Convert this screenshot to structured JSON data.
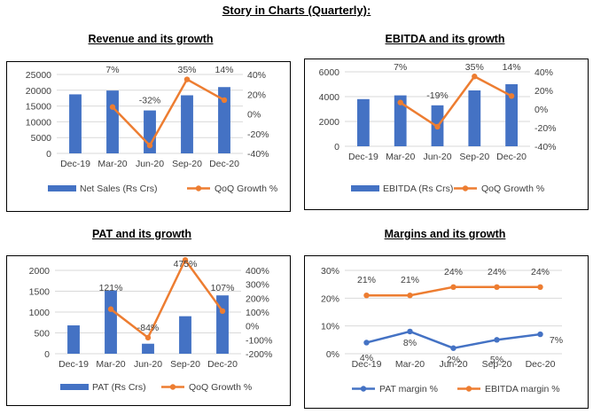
{
  "page_title": "Story in Charts (Quarterly):",
  "colors": {
    "bar": "#4472C4",
    "line": "#ED7D31",
    "pat_line": "#4472C4",
    "ebitda_line": "#ED7D31",
    "grid": "#D9D9D9",
    "axis_text": "#404040"
  },
  "chart_data": [
    {
      "id": "revenue",
      "type": "bar",
      "title": "Revenue and its growth ",
      "categories": [
        "Dec-19",
        "Mar-20",
        "Jun-20",
        "Sep-20",
        "Dec-20"
      ],
      "series": [
        {
          "name": "Net Sales (Rs Crs)",
          "type": "bar",
          "axis": "left",
          "values": [
            18700,
            19900,
            13600,
            18400,
            21000
          ]
        },
        {
          "name": "QoQ Growth %",
          "type": "line",
          "axis": "right",
          "values": [
            null,
            7,
            -32,
            35,
            14
          ],
          "labels": [
            "",
            "7%",
            "-32%",
            "35%",
            "14%"
          ]
        }
      ],
      "y_left": {
        "min": 0,
        "max": 25000,
        "ticks": [
          "0",
          "5000",
          "10000",
          "15000",
          "20000",
          "25000"
        ]
      },
      "y_right": {
        "min": -40,
        "max": 40,
        "ticks": [
          "-40%",
          "-20%",
          "0%",
          "20%",
          "40%"
        ]
      },
      "legend": "bottom"
    },
    {
      "id": "ebitda",
      "type": "bar",
      "title": "EBITDA and its growth",
      "categories": [
        "Dec-19",
        "Mar-20",
        "Jun-20",
        "Sep-20",
        "Dec-20"
      ],
      "series": [
        {
          "name": "EBITDA (Rs Crs)",
          "type": "bar",
          "axis": "left",
          "values": [
            3800,
            4100,
            3300,
            4500,
            5000
          ]
        },
        {
          "name": "QoQ Growth %",
          "type": "line",
          "axis": "right",
          "values": [
            null,
            7,
            -19,
            35,
            14
          ],
          "labels": [
            "",
            "7%",
            "-19%",
            "35%",
            "14%"
          ]
        }
      ],
      "y_left": {
        "min": 0,
        "max": 6000,
        "ticks": [
          "0",
          "2000",
          "4000",
          "6000"
        ]
      },
      "y_right": {
        "min": -40,
        "max": 40,
        "ticks": [
          "-40%",
          "-20%",
          "0%",
          "20%",
          "40%"
        ]
      },
      "legend": "bottom"
    },
    {
      "id": "pat",
      "type": "bar",
      "title": "PAT and its growth",
      "categories": [
        "Dec-19",
        "Mar-20",
        "Jun-20",
        "Sep-20",
        "Dec-20"
      ],
      "series": [
        {
          "name": "PAT (Rs Crs)",
          "type": "bar",
          "axis": "left",
          "values": [
            680,
            1520,
            240,
            900,
            1400
          ]
        },
        {
          "name": "QoQ Growth %",
          "type": "line",
          "axis": "right",
          "values": [
            null,
            121,
            -84,
            475,
            107
          ],
          "labels": [
            "",
            "121%",
            "-84%",
            "475%",
            "107%"
          ]
        }
      ],
      "y_left": {
        "min": 0,
        "max": 2000,
        "ticks": [
          "0",
          "500",
          "1000",
          "1500",
          "2000"
        ]
      },
      "y_right": {
        "min": -200,
        "max": 400,
        "ticks": [
          "-200%",
          "-100%",
          "0%",
          "100%",
          "200%",
          "300%",
          "400%"
        ]
      },
      "legend": "bottom"
    },
    {
      "id": "margins",
      "type": "line",
      "title": "Margins and its growth",
      "categories": [
        "Dec-19",
        "Mar-20",
        "Jun-20",
        "Sep-20",
        "Dec-20"
      ],
      "series": [
        {
          "name": "PAT margin %",
          "type": "line",
          "axis": "left",
          "values": [
            4,
            8,
            2,
            5,
            7
          ],
          "labels": [
            "4%",
            "8%",
            "2%",
            "5%",
            "7%"
          ]
        },
        {
          "name": "EBITDA margin %",
          "type": "line",
          "axis": "left",
          "values": [
            21,
            21,
            24,
            24,
            24
          ],
          "labels": [
            "21%",
            "21%",
            "24%",
            "24%",
            "24%"
          ]
        }
      ],
      "y_left": {
        "min": 0,
        "max": 30,
        "ticks": [
          "0%",
          "10%",
          "20%",
          "30%"
        ]
      },
      "legend": "bottom"
    }
  ]
}
